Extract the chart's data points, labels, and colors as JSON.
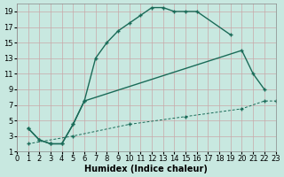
{
  "title": "",
  "xlabel": "Humidex (Indice chaleur)",
  "bg_color": "#c8e8e0",
  "grid_color": "#c8a8a8",
  "line_color": "#1a6b58",
  "xlim": [
    0,
    23
  ],
  "ylim": [
    1,
    20
  ],
  "xtick_vals": [
    0,
    1,
    2,
    3,
    4,
    5,
    6,
    7,
    8,
    9,
    10,
    11,
    12,
    13,
    14,
    15,
    16,
    17,
    18,
    19,
    20,
    21,
    22,
    23
  ],
  "ytick_vals": [
    1,
    3,
    5,
    7,
    9,
    11,
    13,
    15,
    17,
    19
  ],
  "curve1_x": [
    1,
    2,
    3,
    4,
    5,
    6,
    7,
    8,
    9,
    10,
    11,
    12,
    13,
    14,
    15,
    16,
    19
  ],
  "curve1_y": [
    4,
    2.5,
    2,
    2,
    4.5,
    7.5,
    13,
    15,
    16.5,
    17.5,
    18.5,
    19.5,
    19.5,
    19,
    19,
    19,
    16
  ],
  "curve2_x": [
    1,
    2,
    3,
    4,
    5,
    6,
    20,
    21,
    22
  ],
  "curve2_y": [
    4,
    2.5,
    2,
    2,
    4.5,
    7.5,
    14,
    11,
    9
  ],
  "curve3_x": [
    1,
    5,
    10,
    15,
    20,
    22,
    23
  ],
  "curve3_y": [
    2,
    3,
    4.5,
    5.5,
    6.5,
    7.5,
    7.5
  ],
  "fontsize_axis": 7,
  "fontsize_tick": 6
}
